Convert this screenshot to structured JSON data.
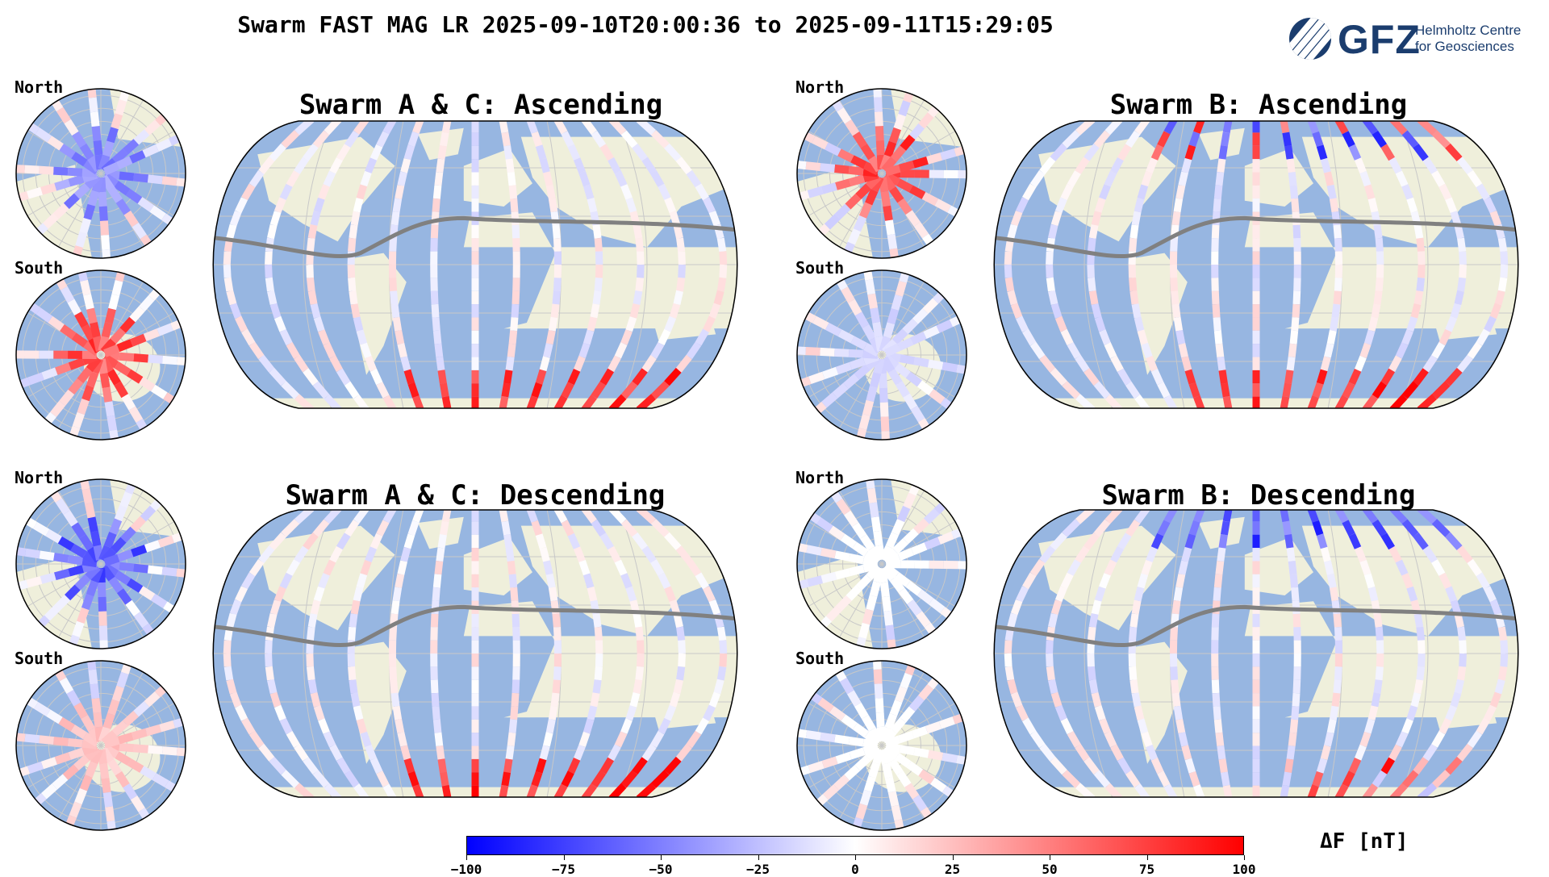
{
  "title": "Swarm FAST MAG LR 2025-09-10T20:00:36 to 2025-09-11T15:29:05",
  "logo": {
    "acronym": "GFZ",
    "sub_line1": "Helmholtz Centre",
    "sub_line2": "for Geosciences"
  },
  "labels": {
    "north": "North",
    "south": "South"
  },
  "panels": [
    {
      "title": "Swarm A & C: Ascending"
    },
    {
      "title": "Swarm B: Ascending"
    },
    {
      "title": "Swarm A & C: Descending"
    },
    {
      "title": "Swarm B: Descending"
    }
  ],
  "colorbar": {
    "label": "ΔF [nT]",
    "min": -100,
    "max": 100,
    "ticks": [
      "−100",
      "−75",
      "−50",
      "−25",
      "0",
      "25",
      "50",
      "75",
      "100"
    ],
    "colors": {
      "low": "#0000ff",
      "mid": "#ffffff",
      "high": "#ff0000"
    }
  },
  "map_style": {
    "ocean": "#97b6e1",
    "land": "#efefdb",
    "dip_equator": "#808080",
    "graticule": "#c8c8c8"
  }
}
